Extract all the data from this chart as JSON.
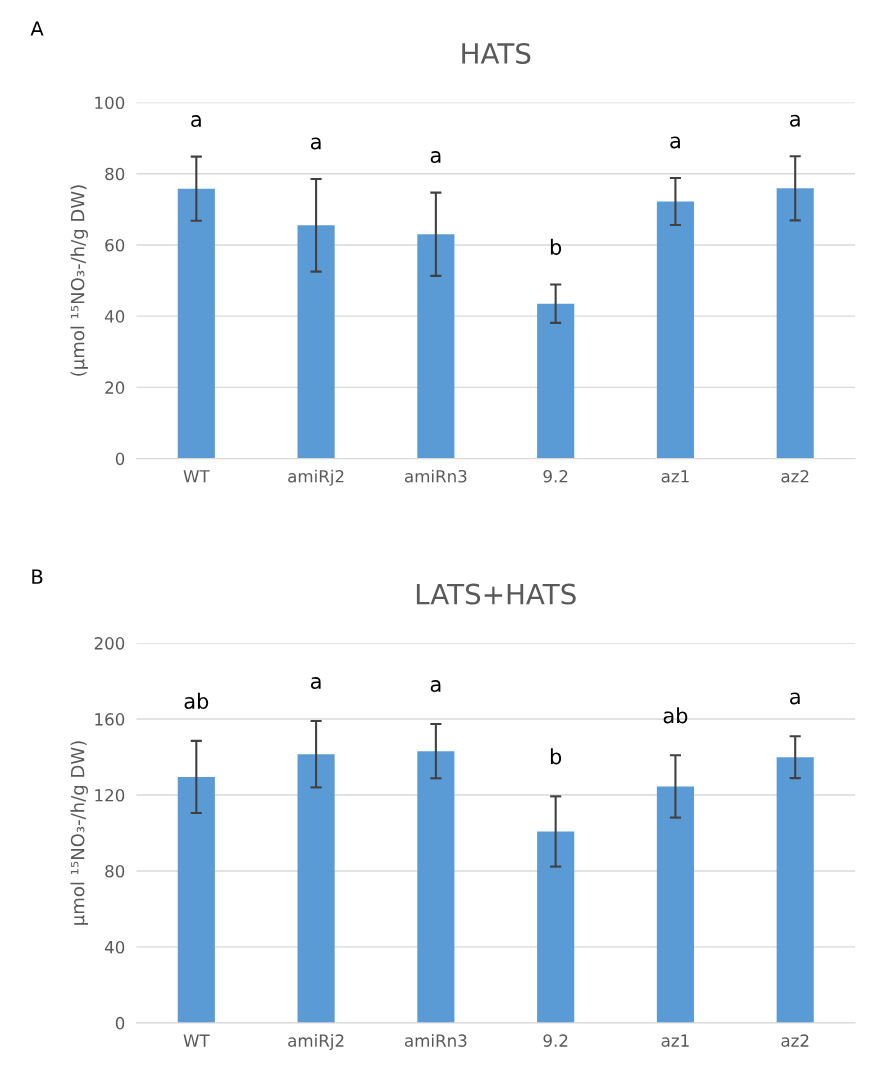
{
  "chart_data": [
    {
      "type": "bar",
      "title": "HATS",
      "ylabel": "(µmol ¹⁵NO₃-/h/g DW)",
      "categories": [
        "WT",
        "amiRj2",
        "amiRn3",
        "9.2",
        "az1",
        "az2"
      ],
      "values": [
        75.8,
        65.5,
        63,
        43.5,
        72.2,
        75.9
      ],
      "errors": [
        9,
        13,
        11.7,
        5.4,
        6.6,
        9
      ],
      "color": "#5b9bd5",
      "ylim": [
        0,
        100
      ],
      "yticks": [
        0,
        20,
        40,
        60,
        80,
        100
      ],
      "grid": "y",
      "annotations": [
        "A",
        "a",
        "a",
        "a",
        "b",
        "a",
        "a"
      ]
    },
    {
      "type": "bar",
      "title": "LATS+HATS",
      "ylabel": "µmol ¹⁵NO₃-/h/g DW)",
      "categories": [
        "WT",
        "amiRj2",
        "amiRn3",
        "9.2",
        "az1",
        "az2"
      ],
      "values": [
        129.5,
        141.5,
        143.1,
        100.8,
        124.5,
        139.9
      ],
      "errors": [
        19,
        17.5,
        14.3,
        18.5,
        16.4,
        11
      ],
      "color": "#5b9bd5",
      "ylim": [
        0,
        200
      ],
      "yticks": [
        0,
        40,
        80,
        120,
        160,
        200
      ],
      "grid": "y",
      "annotations": [
        "B",
        "ab",
        "a",
        "a",
        "b",
        "ab",
        "a"
      ]
    }
  ]
}
